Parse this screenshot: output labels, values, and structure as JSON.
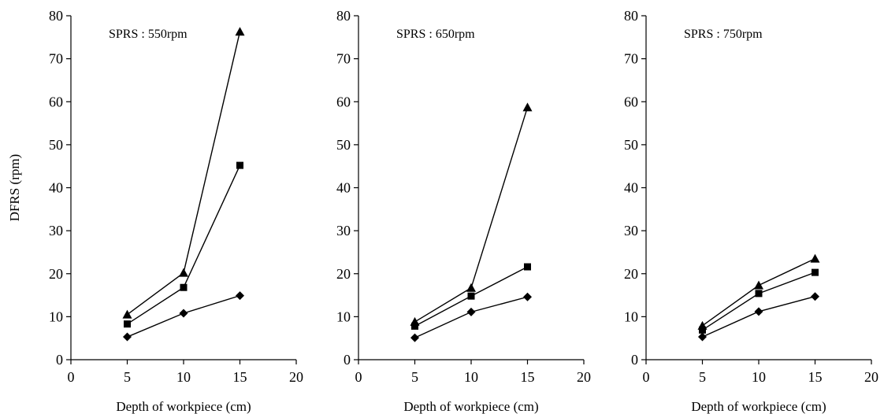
{
  "chart_data": [
    {
      "type": "line",
      "title": "SPRS : 550rpm",
      "xlabel": "Depth of workpiece (cm)",
      "ylabel": "DFRS  (rpm)",
      "xlim": [
        0,
        20
      ],
      "ylim": [
        0,
        80
      ],
      "xticks": [
        0,
        5,
        10,
        15,
        20
      ],
      "yticks": [
        0,
        10,
        20,
        30,
        40,
        50,
        60,
        70,
        80
      ],
      "x": [
        5,
        10,
        15
      ],
      "series": [
        {
          "marker": "diamond",
          "values": [
            5.3,
            10.8,
            14.9
          ]
        },
        {
          "marker": "square",
          "values": [
            8.3,
            16.8,
            45.2
          ]
        },
        {
          "marker": "triangle",
          "values": [
            10.5,
            20.2,
            76.3
          ]
        }
      ]
    },
    {
      "type": "line",
      "title": "SPRS : 650rpm",
      "xlabel": "Depth of workpiece (cm)",
      "ylabel": "",
      "xlim": [
        0,
        20
      ],
      "ylim": [
        0,
        80
      ],
      "xticks": [
        0,
        5,
        10,
        15,
        20
      ],
      "yticks": [
        0,
        10,
        20,
        30,
        40,
        50,
        60,
        70,
        80
      ],
      "x": [
        5,
        10,
        15
      ],
      "series": [
        {
          "marker": "diamond",
          "values": [
            5.1,
            11.1,
            14.6
          ]
        },
        {
          "marker": "square",
          "values": [
            7.8,
            14.8,
            21.6
          ]
        },
        {
          "marker": "triangle",
          "values": [
            8.8,
            16.7,
            58.7
          ]
        }
      ]
    },
    {
      "type": "line",
      "title": "SPRS : 750rpm",
      "xlabel": "Depth of workpiece (cm)",
      "ylabel": "",
      "xlim": [
        0,
        20
      ],
      "ylim": [
        0,
        80
      ],
      "xticks": [
        0,
        5,
        10,
        15,
        20
      ],
      "yticks": [
        0,
        10,
        20,
        30,
        40,
        50,
        60,
        70,
        80
      ],
      "x": [
        5,
        10,
        15
      ],
      "series": [
        {
          "marker": "diamond",
          "values": [
            5.3,
            11.2,
            14.7
          ]
        },
        {
          "marker": "square",
          "values": [
            6.9,
            15.4,
            20.3
          ]
        },
        {
          "marker": "triangle",
          "values": [
            7.9,
            17.3,
            23.5
          ]
        }
      ]
    }
  ]
}
